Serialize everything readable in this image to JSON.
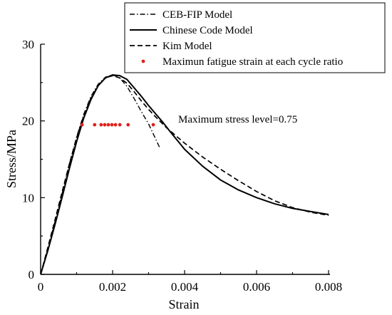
{
  "chart_data": {
    "type": "line",
    "xlabel": "Strain",
    "ylabel": "Stress/MPa",
    "xlim": [
      0,
      0.008
    ],
    "ylim": [
      0,
      30
    ],
    "x_ticks": [
      "0",
      "0.002",
      "0.004",
      "0.006",
      "0.008"
    ],
    "x_tick_values": [
      0,
      0.002,
      0.004,
      0.006,
      0.008
    ],
    "y_ticks": [
      "0",
      "10",
      "20",
      "30"
    ],
    "y_tick_values": [
      0,
      10,
      20,
      30
    ],
    "grid": false,
    "legend_position": "top-right",
    "annotation": "Maximum stress level=0.75",
    "colors": {
      "axis": "#000000",
      "lines": "#000000",
      "points": "#e0201b"
    },
    "series": [
      {
        "name": "CEB-FIP Model",
        "style": "dash-dot",
        "points": [
          [
            0,
            0
          ],
          [
            0.0002,
            3.3
          ],
          [
            0.0004,
            6.9
          ],
          [
            0.0006,
            10.6
          ],
          [
            0.0008,
            14.4
          ],
          [
            0.001,
            17.9
          ],
          [
            0.0012,
            20.9
          ],
          [
            0.0014,
            23.2
          ],
          [
            0.0016,
            24.8
          ],
          [
            0.0018,
            25.7
          ],
          [
            0.002,
            26.0
          ],
          [
            0.0022,
            25.6
          ],
          [
            0.0024,
            24.5
          ],
          [
            0.0026,
            22.9
          ],
          [
            0.0028,
            21.2
          ],
          [
            0.003,
            19.6
          ],
          [
            0.0031,
            18.6
          ],
          [
            0.0032,
            17.6
          ],
          [
            0.0033,
            16.6
          ]
        ]
      },
      {
        "name": "Chinese Code Model",
        "style": "solid",
        "points": [
          [
            0,
            0
          ],
          [
            0.0002,
            3.1
          ],
          [
            0.0004,
            6.5
          ],
          [
            0.0006,
            10.1
          ],
          [
            0.0008,
            13.8
          ],
          [
            0.001,
            17.3
          ],
          [
            0.0012,
            20.4
          ],
          [
            0.0014,
            22.8
          ],
          [
            0.0016,
            24.6
          ],
          [
            0.0018,
            25.6
          ],
          [
            0.002,
            26.0
          ],
          [
            0.0022,
            25.9
          ],
          [
            0.0024,
            25.4
          ],
          [
            0.0026,
            24.3
          ],
          [
            0.0028,
            23.2
          ],
          [
            0.003,
            22.0
          ],
          [
            0.0032,
            20.9
          ],
          [
            0.0034,
            19.8
          ],
          [
            0.0036,
            18.6
          ],
          [
            0.004,
            16.3
          ],
          [
            0.0045,
            14.1
          ],
          [
            0.005,
            12.3
          ],
          [
            0.0055,
            11.0
          ],
          [
            0.006,
            10.0
          ],
          [
            0.0065,
            9.2
          ],
          [
            0.007,
            8.6
          ],
          [
            0.0075,
            8.2
          ],
          [
            0.008,
            7.8
          ]
        ]
      },
      {
        "name": "Kim Model",
        "style": "dashed",
        "points": [
          [
            0,
            0
          ],
          [
            0.0002,
            3.5
          ],
          [
            0.0004,
            7.1
          ],
          [
            0.0006,
            10.8
          ],
          [
            0.0008,
            14.4
          ],
          [
            0.001,
            17.8
          ],
          [
            0.0012,
            20.7
          ],
          [
            0.0014,
            23.0
          ],
          [
            0.0016,
            24.6
          ],
          [
            0.0018,
            25.6
          ],
          [
            0.002,
            25.9
          ],
          [
            0.0022,
            25.6
          ],
          [
            0.0024,
            24.9
          ],
          [
            0.0026,
            23.8
          ],
          [
            0.0028,
            22.6
          ],
          [
            0.003,
            21.5
          ],
          [
            0.0032,
            20.5
          ],
          [
            0.0035,
            19.1
          ],
          [
            0.004,
            17.1
          ],
          [
            0.0045,
            15.3
          ],
          [
            0.005,
            13.7
          ],
          [
            0.0055,
            12.2
          ],
          [
            0.006,
            10.8
          ],
          [
            0.0065,
            9.6
          ],
          [
            0.007,
            8.7
          ],
          [
            0.0075,
            8.1
          ],
          [
            0.008,
            7.7
          ]
        ]
      },
      {
        "name": "Maximun fatigue strain at each cycle ratio",
        "style": "points",
        "points": [
          [
            0.00115,
            19.5
          ],
          [
            0.0015,
            19.5
          ],
          [
            0.00168,
            19.5
          ],
          [
            0.00178,
            19.5
          ],
          [
            0.00188,
            19.5
          ],
          [
            0.00198,
            19.5
          ],
          [
            0.00208,
            19.5
          ],
          [
            0.0022,
            19.5
          ],
          [
            0.00243,
            19.5
          ],
          [
            0.00313,
            19.5
          ]
        ]
      }
    ]
  }
}
